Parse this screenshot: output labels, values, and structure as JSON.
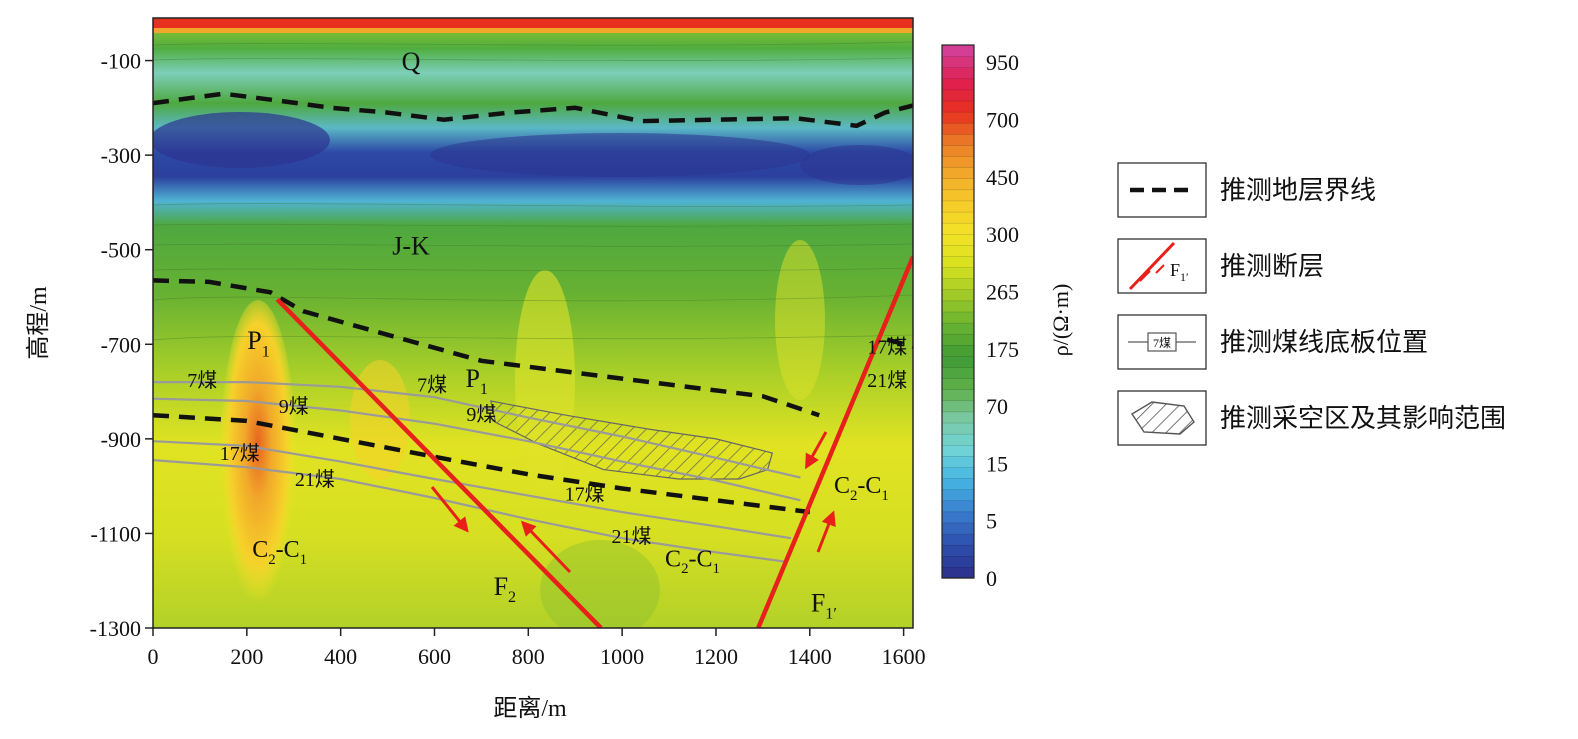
{
  "colors": {
    "fault": "#e8201c",
    "boundary": "#111111",
    "coal_line": "#9a9a9a",
    "hatch": "#555555",
    "frame": "#222222"
  },
  "chart_data": {
    "type": "heatmap",
    "xlabel": "距离/m",
    "ylabel": "高程/m",
    "xlim": [
      0,
      1620
    ],
    "ylim": [
      -1300,
      -10
    ],
    "x_ticks": [
      "0",
      "200",
      "400",
      "600",
      "800",
      "1000",
      "1200",
      "1400",
      "1600"
    ],
    "y_ticks": [
      "-100",
      "-300",
      "-500",
      "-700",
      "-900",
      "-1100",
      "-1300"
    ],
    "colorbar": {
      "label": "ρ/(Ω·m)",
      "labels": [
        "0",
        "5",
        "15",
        "70",
        "175",
        "265",
        "300",
        "450",
        "700",
        "950"
      ],
      "stops": [
        "#2c3490",
        "#2f52b0",
        "#3a7fcf",
        "#46b4e2",
        "#6fd3d7",
        "#7ac9a4",
        "#5fb04a",
        "#3f9a35",
        "#66b132",
        "#9cc927",
        "#d7e21f",
        "#f2e228",
        "#f6cd2a",
        "#f1a82a",
        "#eb7d27",
        "#e7301e",
        "#e02050",
        "#d43f95"
      ]
    },
    "strata_labels": [
      {
        "text": "Q",
        "x": 550,
        "y": -120
      },
      {
        "text": "J-K",
        "x": 550,
        "y": -510
      }
    ],
    "boundaries": [
      [
        [
          0,
          -190
        ],
        [
          150,
          -170
        ],
        [
          270,
          -185
        ],
        [
          380,
          -200
        ],
        [
          500,
          -210
        ],
        [
          620,
          -225
        ],
        [
          760,
          -210
        ],
        [
          900,
          -200
        ],
        [
          1040,
          -228
        ],
        [
          1200,
          -225
        ],
        [
          1370,
          -222
        ],
        [
          1500,
          -238
        ],
        [
          1560,
          -210
        ],
        [
          1620,
          -195
        ]
      ],
      [
        [
          0,
          -565
        ],
        [
          120,
          -568
        ],
        [
          250,
          -590
        ],
        [
          320,
          -630
        ],
        [
          500,
          -680
        ],
        [
          700,
          -735
        ],
        [
          900,
          -760
        ],
        [
          1100,
          -785
        ],
        [
          1300,
          -810
        ],
        [
          1420,
          -850
        ]
      ],
      [
        [
          0,
          -850
        ],
        [
          200,
          -862
        ],
        [
          400,
          -900
        ],
        [
          600,
          -938
        ],
        [
          800,
          -975
        ],
        [
          1000,
          -1005
        ],
        [
          1200,
          -1030
        ],
        [
          1400,
          -1055
        ]
      ],
      [
        [
          1565,
          -690
        ],
        [
          1620,
          -705
        ]
      ]
    ],
    "faults": [
      {
        "name": "F",
        "sub": "2",
        "x_label": 750,
        "y_label": -1230,
        "line": [
          [
            265,
            -605
          ],
          [
            955,
            -1300
          ]
        ]
      },
      {
        "name": "F",
        "sub": "1′",
        "x_label": 1430,
        "y_label": -1265,
        "line": [
          [
            1290,
            -1300
          ],
          [
            1620,
            -515
          ]
        ]
      }
    ],
    "coal_seams": [
      {
        "label": "7煤",
        "x_label": 105,
        "y_label": -790,
        "line": [
          [
            0,
            -780
          ],
          [
            200,
            -780
          ],
          [
            400,
            -790
          ],
          [
            600,
            -812
          ],
          [
            800,
            -855
          ],
          [
            1000,
            -895
          ],
          [
            1200,
            -940
          ],
          [
            1380,
            -982
          ]
        ]
      },
      {
        "label": "9煤",
        "x_label": 300,
        "y_label": -845,
        "line": [
          [
            0,
            -815
          ],
          [
            200,
            -820
          ],
          [
            400,
            -840
          ],
          [
            600,
            -868
          ],
          [
            800,
            -905
          ],
          [
            1000,
            -948
          ],
          [
            1200,
            -988
          ],
          [
            1380,
            -1030
          ]
        ]
      },
      {
        "label": "17煤",
        "x_label": 185,
        "y_label": -945,
        "line": [
          [
            0,
            -905
          ],
          [
            200,
            -915
          ],
          [
            400,
            -948
          ],
          [
            600,
            -985
          ],
          [
            800,
            -1020
          ],
          [
            1000,
            -1055
          ],
          [
            1200,
            -1085
          ],
          [
            1360,
            -1110
          ]
        ]
      },
      {
        "label": "21煤",
        "x_label": 345,
        "y_label": -1000,
        "line": [
          [
            0,
            -945
          ],
          [
            200,
            -960
          ],
          [
            400,
            -985
          ],
          [
            600,
            -1025
          ],
          [
            800,
            -1070
          ],
          [
            1000,
            -1110
          ],
          [
            1200,
            -1140
          ],
          [
            1350,
            -1160
          ]
        ]
      }
    ],
    "extra_labels": [
      {
        "text": "P",
        "sub": "1",
        "x": 225,
        "y": -710,
        "size": 26
      },
      {
        "text": "P",
        "sub": "1",
        "x": 690,
        "y": -790,
        "size": 26
      },
      {
        "text": "C",
        "sub": "2",
        "tail": "-C",
        "sub2": "1",
        "x": 270,
        "y": -1150,
        "size": 24
      },
      {
        "text": "C",
        "sub": "2",
        "tail": "-C",
        "sub2": "1",
        "x": 1150,
        "y": -1170,
        "size": 24
      },
      {
        "text": "C",
        "sub": "2",
        "tail": "-C",
        "sub2": "1",
        "x": 1510,
        "y": -1015,
        "size": 24
      },
      {
        "text": "7煤",
        "x": 595,
        "y": -800,
        "size": 20
      },
      {
        "text": "9煤",
        "x": 700,
        "y": -862,
        "size": 20
      },
      {
        "text": "17煤",
        "x": 920,
        "y": -1030,
        "size": 20
      },
      {
        "text": "21煤",
        "x": 1020,
        "y": -1120,
        "size": 20
      },
      {
        "text": "17煤",
        "x": 1565,
        "y": -720,
        "size": 20
      },
      {
        "text": "21煤",
        "x": 1565,
        "y": -790,
        "size": 20
      }
    ],
    "goaf": {
      "polygon": [
        [
          720,
          -820
        ],
        [
          880,
          -850
        ],
        [
          1060,
          -880
        ],
        [
          1200,
          -900
        ],
        [
          1320,
          -930
        ],
        [
          1310,
          -965
        ],
        [
          1250,
          -985
        ],
        [
          1120,
          -985
        ],
        [
          960,
          -965
        ],
        [
          820,
          -910
        ],
        [
          730,
          -865
        ]
      ]
    },
    "legend": [
      {
        "type": "boundary",
        "label": "推测地层界线"
      },
      {
        "type": "fault",
        "label": "推测断层",
        "symbol_text": "F",
        "symbol_sub": "1′"
      },
      {
        "type": "coal",
        "label": "推测煤线底板位置",
        "symbol_text": "7煤"
      },
      {
        "type": "goaf",
        "label": "推测采空区及其影响范围"
      }
    ]
  }
}
